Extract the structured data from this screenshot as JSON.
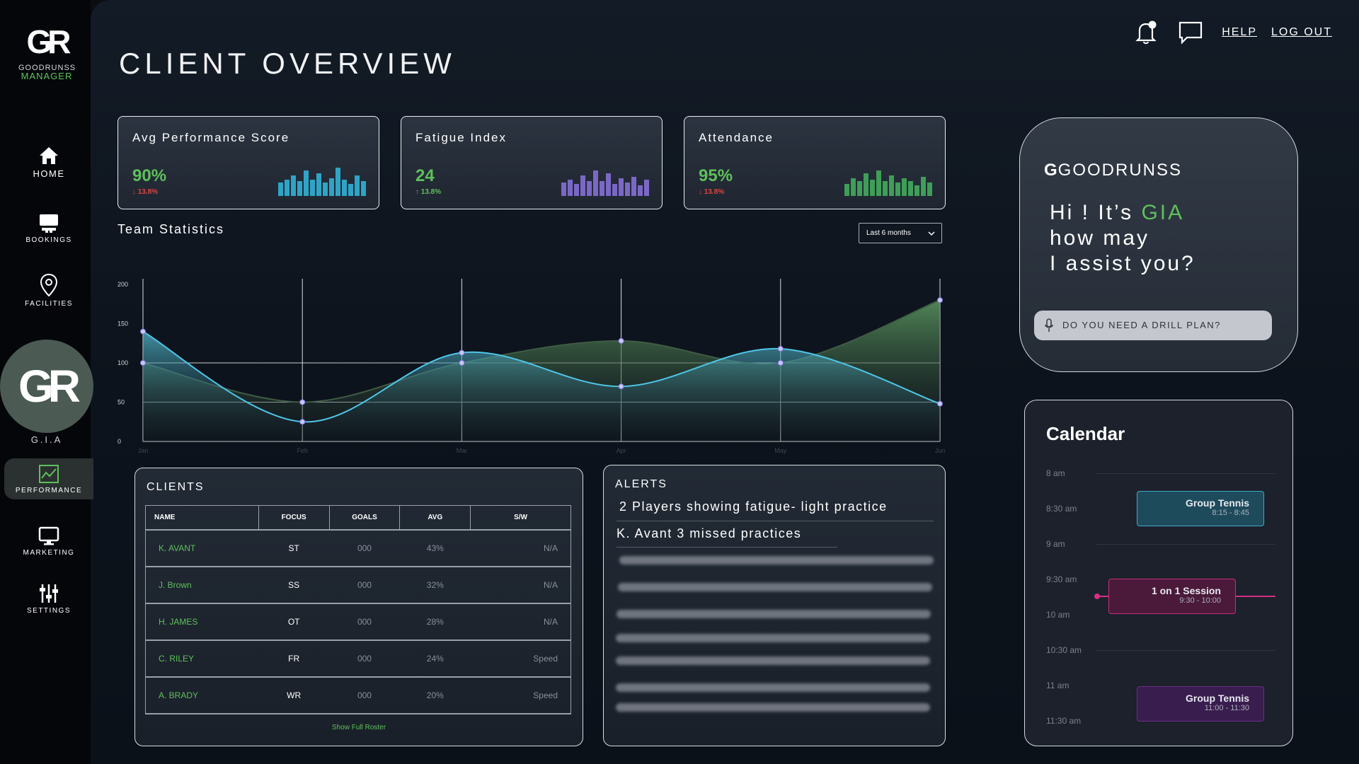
{
  "brand": {
    "line1": "GOODRUNSS",
    "line2": "MANAGER",
    "mark": "GR"
  },
  "nav": {
    "home": "HOME",
    "bookings": "BOOKINGS",
    "facilities": "FACILITIES",
    "gia": "G.I.A",
    "performance": "PERFORMANCE",
    "marketing": "MARKETING",
    "settings": "SETTINGS"
  },
  "header": {
    "title": "CLIENT OVERVIEW",
    "help": "HELP",
    "logout": "LOG OUT"
  },
  "metrics": [
    {
      "title": "Avg Performance Score",
      "value": "90%",
      "delta": "13.8%",
      "direction": "down",
      "delta_color": "#e0443e",
      "bar_color": "#2fa4c6",
      "bars": [
        0.45,
        0.55,
        0.7,
        0.5,
        0.85,
        0.55,
        0.75,
        0.45,
        0.6,
        0.95,
        0.55,
        0.4,
        0.7,
        0.5
      ]
    },
    {
      "title": "Fatigue Index",
      "value": "24",
      "delta": "13.8%",
      "direction": "up",
      "delta_color": "#5ec05b",
      "bar_color": "#7b68c6",
      "bars": [
        0.45,
        0.55,
        0.4,
        0.7,
        0.5,
        0.85,
        0.5,
        0.75,
        0.4,
        0.6,
        0.45,
        0.65,
        0.35,
        0.55
      ]
    },
    {
      "title": "Attendance",
      "value": "95%",
      "delta": "13.8%",
      "direction": "down",
      "delta_color": "#e0443e",
      "bar_color": "#3f9e57",
      "bars": [
        0.4,
        0.6,
        0.5,
        0.75,
        0.55,
        0.85,
        0.5,
        0.7,
        0.45,
        0.6,
        0.5,
        0.35,
        0.65,
        0.45
      ]
    }
  ],
  "team_stats": {
    "title": "Team Statistics",
    "range": "Last 6 months"
  },
  "chart_data": {
    "type": "area",
    "x": [
      "Jan",
      "Feb",
      "Mar",
      "Apr",
      "May",
      "Jun"
    ],
    "ylim": [
      0,
      200
    ],
    "yticks": [
      0,
      50,
      100,
      150,
      200
    ],
    "series": [
      {
        "values": [
          140,
          25,
          113,
          70,
          118,
          48
        ],
        "color": "#4fc6e8"
      },
      {
        "values": [
          100,
          50,
          100,
          128,
          100,
          180
        ],
        "color": "#4e8f56"
      }
    ]
  },
  "clients": {
    "title": "CLIENTS",
    "columns": [
      "NAME",
      "FOCUS",
      "GOALS",
      "AVG",
      "S/W"
    ],
    "rows": [
      [
        "K. AVANT",
        "ST",
        "000",
        "43%",
        "N/A"
      ],
      [
        "J. Brown",
        "SS",
        "000",
        "32%",
        "N/A"
      ],
      [
        "H. JAMES",
        "OT",
        "000",
        "28%",
        "N/A"
      ],
      [
        "C. RILEY",
        "FR",
        "000",
        "24%",
        "Speed"
      ],
      [
        "A. BRADY",
        "WR",
        "000",
        "20%",
        "Speed"
      ]
    ],
    "footer": "Show Full Roster"
  },
  "alerts": {
    "title": "ALERTS",
    "items": [
      "2 Players showing fatigue- light practice",
      "K. Avant 3 missed practices"
    ]
  },
  "gia": {
    "brand": "GOODRUNSS",
    "greeting_1": "Hi ! It’s ",
    "greeting_name": "GIA",
    "greeting_2": "how may",
    "greeting_3": "I assist you?",
    "placeholder": "DO YOU NEED A DRILL PLAN?"
  },
  "calendar": {
    "title": "Calendar",
    "times": [
      "8 am",
      "8:30 am",
      "9 am",
      "9:30 am",
      "10 am",
      "10:30 am",
      "11 am",
      "11:30 am"
    ],
    "events": [
      {
        "title": "Group Tennis",
        "time": "8:15 - 8:45"
      },
      {
        "title": "1 on 1 Session",
        "time": "9:30 - 10:00"
      },
      {
        "title": "Group Tennis",
        "time": "11:00 - 11:30"
      }
    ]
  }
}
